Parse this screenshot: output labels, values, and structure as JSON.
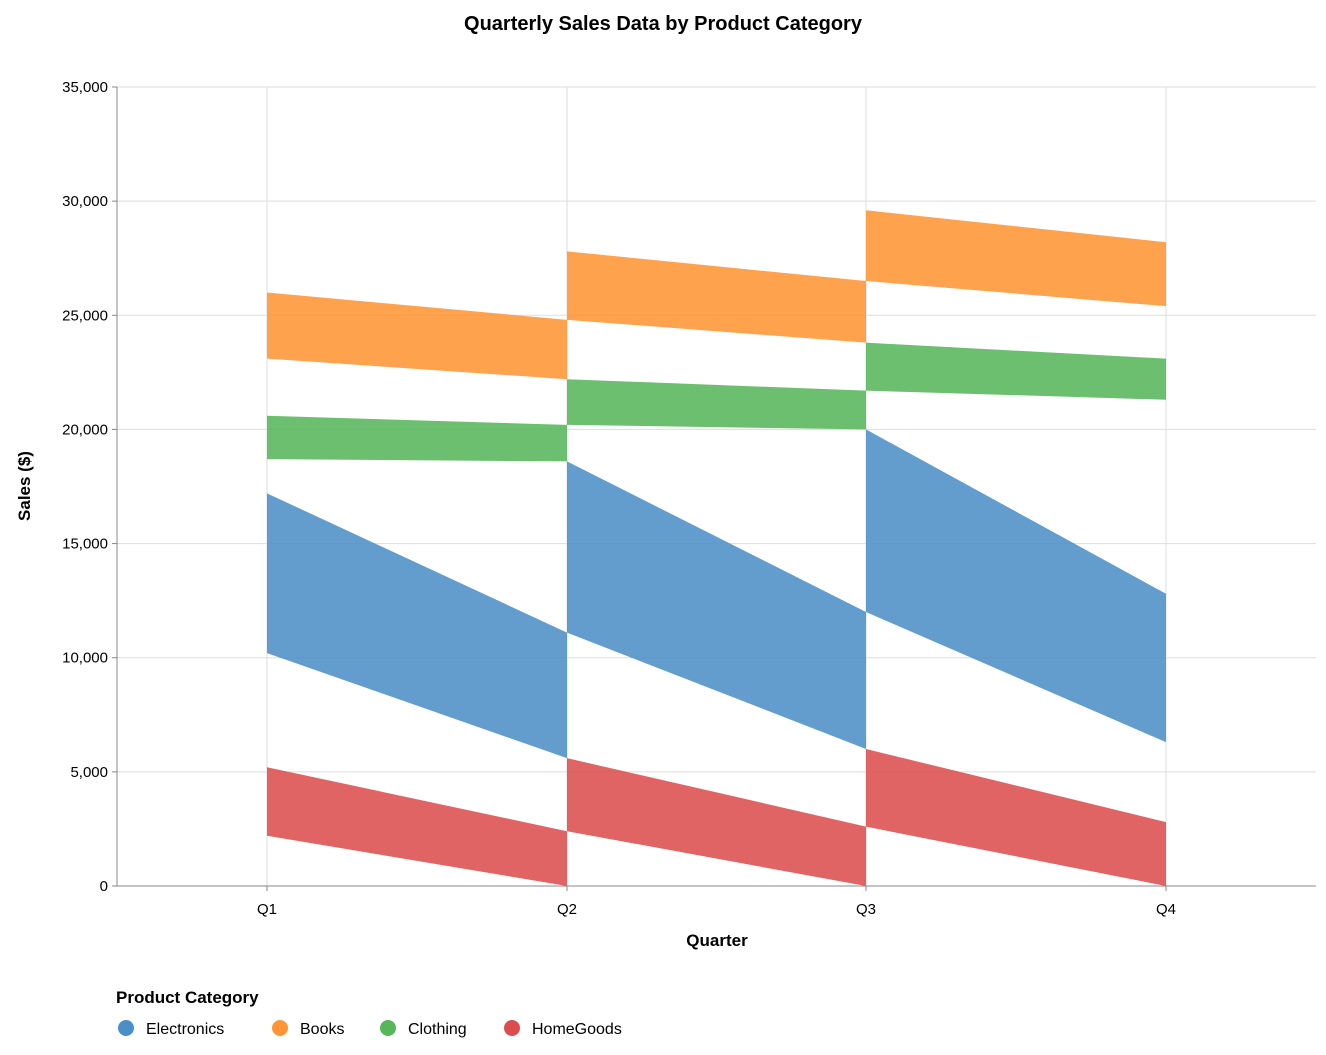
{
  "chart_data": {
    "type": "area",
    "title": "Quarterly Sales Data by Product Category",
    "xlabel": "Quarter",
    "ylabel": "Sales ($)",
    "categories": [
      "Q1",
      "Q2",
      "Q3",
      "Q4"
    ],
    "ylim": [
      0,
      35000
    ],
    "yticks": [
      0,
      5000,
      10000,
      15000,
      20000,
      25000,
      30000,
      35000
    ],
    "ytick_labels": [
      "0",
      "5,000",
      "10,000",
      "15,000",
      "20,000",
      "25,000",
      "30,000",
      "35,000"
    ],
    "grid": true,
    "legend": {
      "title": "Product Category",
      "placement": "bottom-left"
    },
    "series": [
      {
        "name": "Electronics",
        "color": "#4c8fc6",
        "segments": [
          {
            "x": [
              "Q1",
              "Q2"
            ],
            "bottom": [
              10200,
              5600
            ],
            "top": [
              17200,
              11100
            ]
          },
          {
            "x": [
              "Q2",
              "Q3"
            ],
            "bottom": [
              11100,
              6000
            ],
            "top": [
              18600,
              12000
            ]
          },
          {
            "x": [
              "Q3",
              "Q4"
            ],
            "bottom": [
              12000,
              6300
            ],
            "top": [
              20000,
              12800
            ]
          }
        ]
      },
      {
        "name": "Books",
        "color": "#ff9535",
        "segments": [
          {
            "x": [
              "Q1",
              "Q2"
            ],
            "bottom": [
              23100,
              22200
            ],
            "top": [
              26000,
              24800
            ]
          },
          {
            "x": [
              "Q2",
              "Q3"
            ],
            "bottom": [
              24800,
              23800
            ],
            "top": [
              27800,
              26500
            ]
          },
          {
            "x": [
              "Q3",
              "Q4"
            ],
            "bottom": [
              26500,
              25400
            ],
            "top": [
              29600,
              28200
            ]
          }
        ]
      },
      {
        "name": "Clothing",
        "color": "#57b65a",
        "segments": [
          {
            "x": [
              "Q1",
              "Q2"
            ],
            "bottom": [
              18700,
              18600
            ],
            "top": [
              20600,
              20200
            ]
          },
          {
            "x": [
              "Q2",
              "Q3"
            ],
            "bottom": [
              20200,
              20000
            ],
            "top": [
              22200,
              21700
            ]
          },
          {
            "x": [
              "Q3",
              "Q4"
            ],
            "bottom": [
              21700,
              21300
            ],
            "top": [
              23800,
              23100
            ]
          }
        ]
      },
      {
        "name": "HomeGoods",
        "color": "#dc4e4e",
        "segments": [
          {
            "x": [
              "Q1",
              "Q2"
            ],
            "bottom": [
              2200,
              0
            ],
            "top": [
              5200,
              2400
            ]
          },
          {
            "x": [
              "Q2",
              "Q3"
            ],
            "bottom": [
              2400,
              0
            ],
            "top": [
              5600,
              2600
            ]
          },
          {
            "x": [
              "Q3",
              "Q4"
            ],
            "bottom": [
              2600,
              0
            ],
            "top": [
              6000,
              2800
            ]
          }
        ]
      }
    ]
  }
}
